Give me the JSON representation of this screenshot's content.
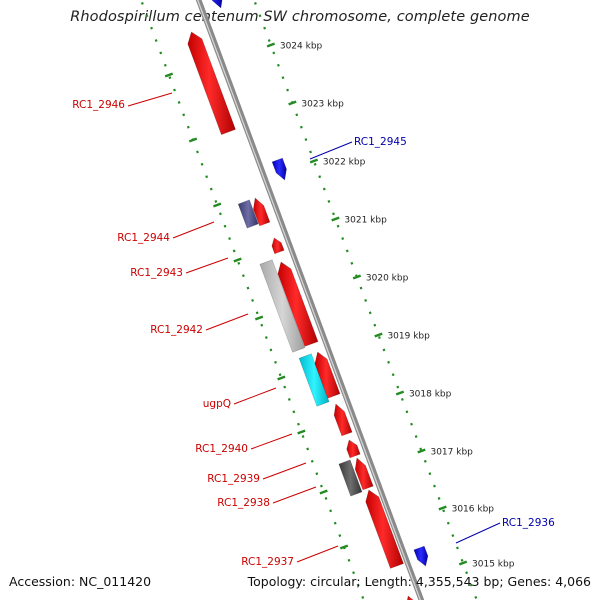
{
  "title": "Rhodospirillum centenum SW chromosome, complete genome",
  "footer": {
    "accession": "Accession: NC_011420",
    "topology": "Topology: circular; Length: 4,355,543 bp; Genes: 4,066"
  },
  "ticks": [
    "3024 kbp",
    "3023 kbp",
    "3022 kbp",
    "3021 kbp",
    "3020 kbp",
    "3019 kbp",
    "3018 kbp",
    "3017 kbp",
    "3016 kbp",
    "3015 kbp"
  ],
  "gene_labels_left": [
    "RC1_2946",
    "RC1_2944",
    "RC1_2943",
    "RC1_2942",
    "ugpQ",
    "RC1_2940",
    "RC1_2939",
    "RC1_2938",
    "RC1_2937"
  ],
  "gene_labels_right": [
    "RC1_2945",
    "RC1_2936"
  ],
  "colors": {
    "forward_cds": "#ee1111",
    "reverse_cds": "#1a1aee",
    "label_forward": "#cc0000",
    "label_reverse": "#0000aa",
    "backbone": "#8a8a8a",
    "tick_marks": "#228b22",
    "light_grey_feature": "#c4c4c4",
    "dark_grey_feature": "#5a5a5a",
    "cyan_feature": "#00e5ee",
    "purple_feature": "#55558a"
  }
}
